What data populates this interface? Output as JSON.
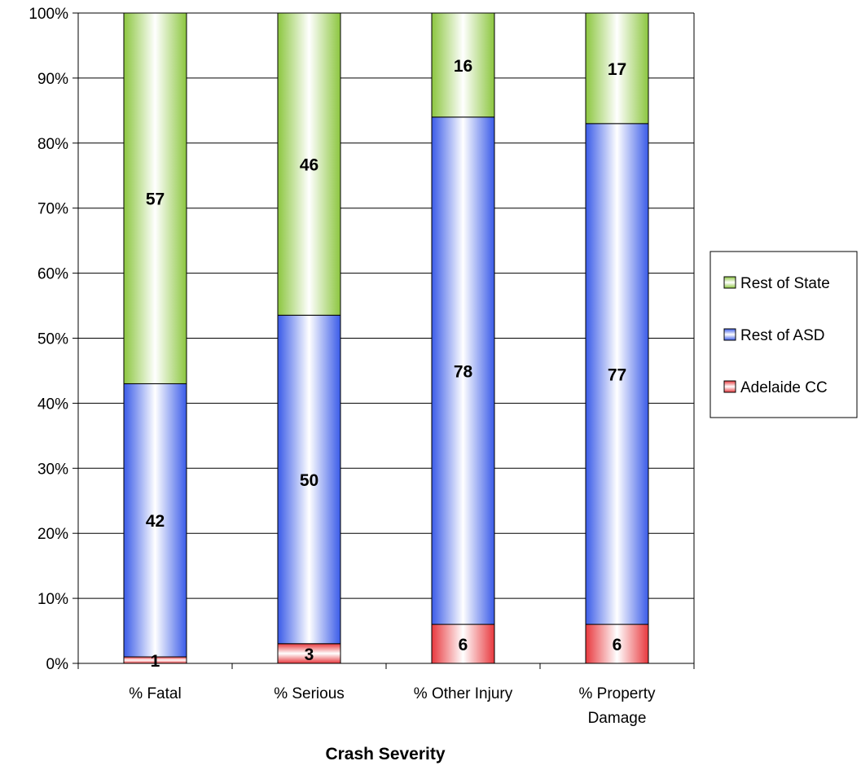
{
  "chart_data": {
    "type": "bar",
    "stacked": true,
    "percent_stacked": true,
    "categories": [
      [
        "% Fatal"
      ],
      [
        "% Serious"
      ],
      [
        "% Other Injury"
      ],
      [
        "% Property",
        "Damage"
      ]
    ],
    "series": [
      {
        "name": "Adelaide CC",
        "values": [
          1,
          3,
          6,
          6
        ],
        "color": "#e8383d"
      },
      {
        "name": "Rest of ASD",
        "values": [
          42,
          50,
          78,
          77
        ],
        "color": "#3a5be8"
      },
      {
        "name": "Rest of State",
        "values": [
          57,
          46,
          16,
          17
        ],
        "color": "#8cc63f"
      }
    ],
    "xlabel": "Crash Severity",
    "ylabel": "",
    "ylim": [
      0,
      100
    ],
    "yticks": [
      "0%",
      "10%",
      "20%",
      "30%",
      "40%",
      "50%",
      "60%",
      "70%",
      "80%",
      "90%",
      "100%"
    ],
    "grid": true,
    "legend": {
      "placement": "right",
      "order": [
        "Rest of State",
        "Rest of ASD",
        "Adelaide CC"
      ]
    }
  }
}
